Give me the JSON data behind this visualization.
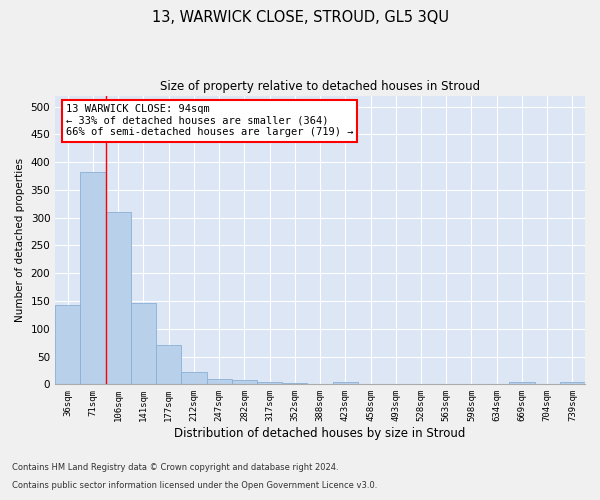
{
  "title": "13, WARWICK CLOSE, STROUD, GL5 3QU",
  "subtitle": "Size of property relative to detached houses in Stroud",
  "xlabel": "Distribution of detached houses by size in Stroud",
  "ylabel": "Number of detached properties",
  "footnote1": "Contains HM Land Registry data © Crown copyright and database right 2024.",
  "footnote2": "Contains public sector information licensed under the Open Government Licence v3.0.",
  "bar_labels": [
    "36sqm",
    "71sqm",
    "106sqm",
    "141sqm",
    "177sqm",
    "212sqm",
    "247sqm",
    "282sqm",
    "317sqm",
    "352sqm",
    "388sqm",
    "423sqm",
    "458sqm",
    "493sqm",
    "528sqm",
    "563sqm",
    "598sqm",
    "634sqm",
    "669sqm",
    "704sqm",
    "739sqm"
  ],
  "bar_values": [
    143,
    383,
    310,
    147,
    70,
    22,
    10,
    8,
    4,
    2,
    1,
    4,
    0,
    0,
    0,
    0,
    0,
    0,
    4,
    0,
    4
  ],
  "bar_color": "#b8d0ea",
  "bar_edge_color": "#8aafd4",
  "bg_color": "#dce6f5",
  "grid_color": "#ffffff",
  "annotation_title": "13 WARWICK CLOSE: 94sqm",
  "annotation_line1": "← 33% of detached houses are smaller (364)",
  "annotation_line2": "66% of semi-detached houses are larger (719) →",
  "marker_bin_index": 1,
  "ylim": [
    0,
    520
  ],
  "yticks": [
    0,
    50,
    100,
    150,
    200,
    250,
    300,
    350,
    400,
    450,
    500
  ],
  "fig_bg": "#f0f0f0"
}
